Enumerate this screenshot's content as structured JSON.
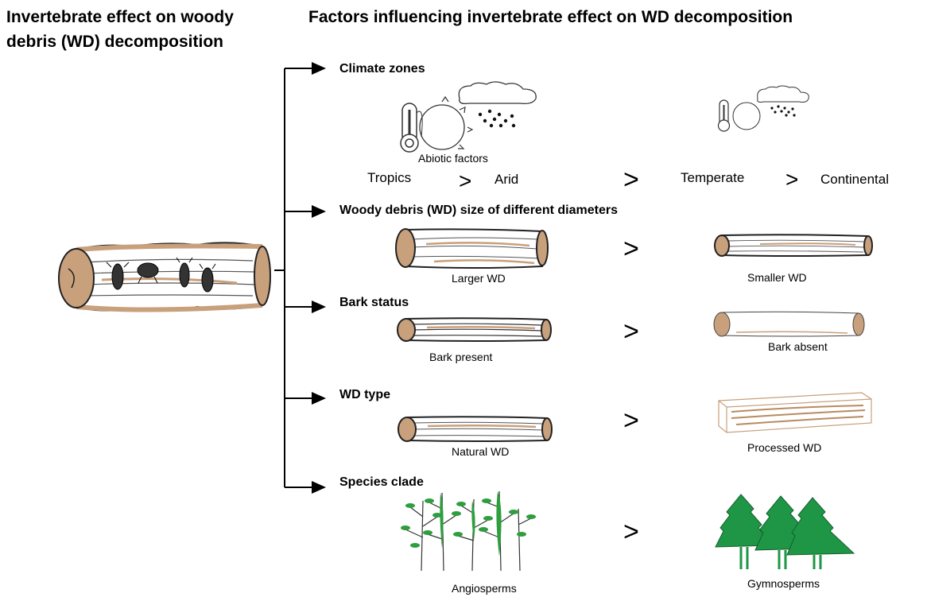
{
  "title_left": "Invertebrate effect on woody debris (WD) decomposition",
  "title_right": "Factors influencing invertebrate effect on WD decomposition",
  "factors": [
    {
      "heading": "Climate zones",
      "labels": [
        "Abiotic factors"
      ]
    },
    {
      "heading": "Woody debris (WD) size of different diameters",
      "labels": [
        "Larger WD",
        "Smaller WD"
      ]
    },
    {
      "heading": "Bark status",
      "labels": [
        "Bark present",
        "Bark absent"
      ]
    },
    {
      "heading": "WD type",
      "labels": [
        "Natural WD",
        "Processed WD"
      ]
    },
    {
      "heading": "Species clade",
      "labels": [
        "Angiosperms",
        "Gymnosperms"
      ]
    }
  ],
  "climate_order": [
    "Tropics",
    "Arid",
    "Temperate",
    "Continental"
  ],
  "greater_than": ">",
  "colors": {
    "wood": "#c8a07c",
    "wood_dark": "#a07850",
    "leaf": "#2e9e3e",
    "conifer": "#1e9646",
    "line": "#000000"
  }
}
